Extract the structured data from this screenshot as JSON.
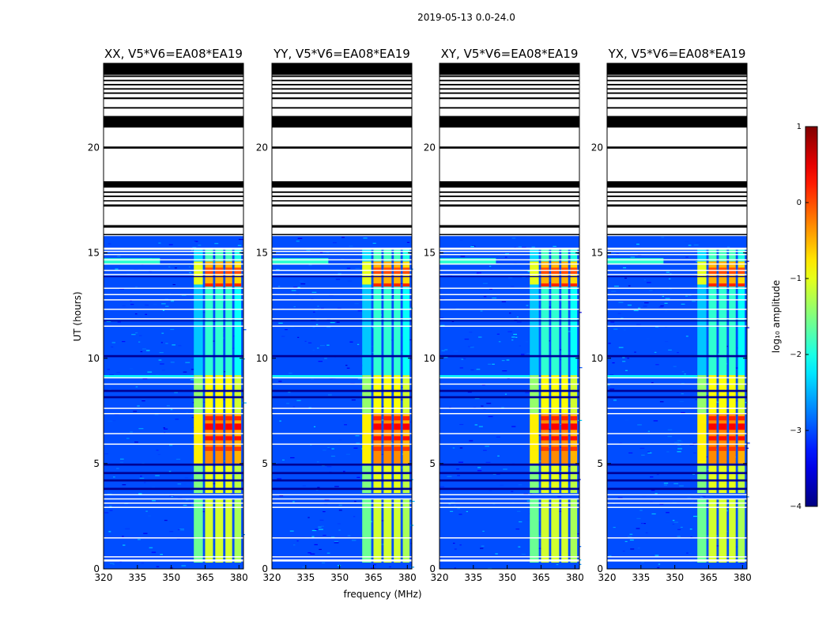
{
  "figure": {
    "suptitle": "2019-05-13 0.0-24.0",
    "xlabel": "frequency (MHz)",
    "ylabel": "UT (hours)",
    "colorbar_label": "log₁₀ amplitude",
    "colormap": "jet"
  },
  "chart_data": {
    "type": "heatmap",
    "x_unit": "MHz",
    "y_unit": "UT hours",
    "xlim": [
      320,
      382
    ],
    "ylim": [
      0,
      24
    ],
    "xticks": [
      320,
      335,
      350,
      365,
      380
    ],
    "yticks": [
      0,
      5,
      10,
      15,
      20
    ],
    "color_range": [
      -4,
      1
    ],
    "colorbar_ticks": [
      1,
      0,
      -1,
      -2,
      -3,
      -4
    ],
    "colorbar_tick_labels": [
      "1",
      "0",
      "−1",
      "−2",
      "−3",
      "−4"
    ],
    "background_level": -3.0,
    "panels": [
      {
        "title": "XX, V5*V6=EA08*EA19"
      },
      {
        "title": "YY, V5*V6=EA08*EA19"
      },
      {
        "title": "XY, V5*V6=EA08*EA19"
      },
      {
        "title": "YX, V5*V6=EA08*EA19"
      }
    ],
    "data_valid_until_ut": 15.8,
    "rfi_channels_mhz": [
      {
        "start": 360.0,
        "end": 364.0
      },
      {
        "start": 365.0,
        "end": 368.5
      },
      {
        "start": 369.5,
        "end": 373.0
      },
      {
        "start": 374.0,
        "end": 377.0
      },
      {
        "start": 378.0,
        "end": 381.0
      }
    ],
    "rfi_time_segments": [
      {
        "start": 0.3,
        "end": 3.3,
        "level": -1.1
      },
      {
        "start": 3.6,
        "end": 5.0,
        "level": -1.0
      },
      {
        "start": 5.0,
        "end": 7.4,
        "level": -0.3
      },
      {
        "start": 7.4,
        "end": 9.2,
        "level": -0.9
      },
      {
        "start": 9.2,
        "end": 13.5,
        "level": -1.9
      },
      {
        "start": 13.5,
        "end": 14.6,
        "level": -0.5
      },
      {
        "start": 14.6,
        "end": 15.2,
        "level": -1.8
      }
    ],
    "flagged_rows_ut": [
      [
        0.35,
        0.45
      ],
      [
        0.55,
        0.6
      ],
      [
        1.45,
        1.5
      ],
      [
        2.9,
        2.95
      ],
      [
        3.1,
        3.15
      ],
      [
        3.3,
        3.35
      ],
      [
        3.5,
        3.55
      ],
      [
        5.9,
        5.95
      ],
      [
        6.4,
        6.45
      ],
      [
        7.35,
        7.4
      ],
      [
        7.6,
        7.65
      ],
      [
        8.75,
        8.8
      ],
      [
        9.05,
        9.1
      ],
      [
        11.5,
        11.55
      ],
      [
        11.85,
        11.9
      ],
      [
        12.3,
        12.35
      ],
      [
        12.75,
        12.8
      ],
      [
        13.0,
        13.05
      ],
      [
        13.3,
        13.35
      ],
      [
        13.95,
        14.0
      ],
      [
        14.15,
        14.2
      ],
      [
        14.45,
        14.5
      ],
      [
        14.65,
        14.7
      ],
      [
        14.9,
        14.95
      ],
      [
        15.05,
        15.1
      ],
      [
        15.15,
        15.25
      ]
    ],
    "dark_rows_ut": [
      [
        3.75,
        3.85
      ],
      [
        4.15,
        4.25
      ],
      [
        4.5,
        4.6
      ],
      [
        4.9,
        5.0
      ],
      [
        8.1,
        8.2
      ],
      [
        8.4,
        8.5
      ],
      [
        10.05,
        10.15
      ],
      [
        11.75,
        11.8
      ],
      [
        13.85,
        13.9
      ]
    ],
    "black_rows_ut": [
      [
        15.85,
        15.9
      ],
      [
        16.2,
        16.32
      ],
      [
        17.2,
        17.3
      ],
      [
        17.45,
        17.5
      ],
      [
        17.65,
        17.72
      ],
      [
        17.85,
        17.92
      ],
      [
        18.1,
        18.4
      ],
      [
        19.95,
        20.05
      ],
      [
        20.95,
        21.5
      ],
      [
        21.85,
        21.92
      ],
      [
        22.3,
        22.38
      ],
      [
        22.55,
        22.62
      ],
      [
        22.75,
        22.82
      ],
      [
        22.95,
        23.02
      ],
      [
        23.15,
        23.22
      ],
      [
        23.35,
        23.42
      ],
      [
        23.45,
        24.0
      ]
    ]
  }
}
